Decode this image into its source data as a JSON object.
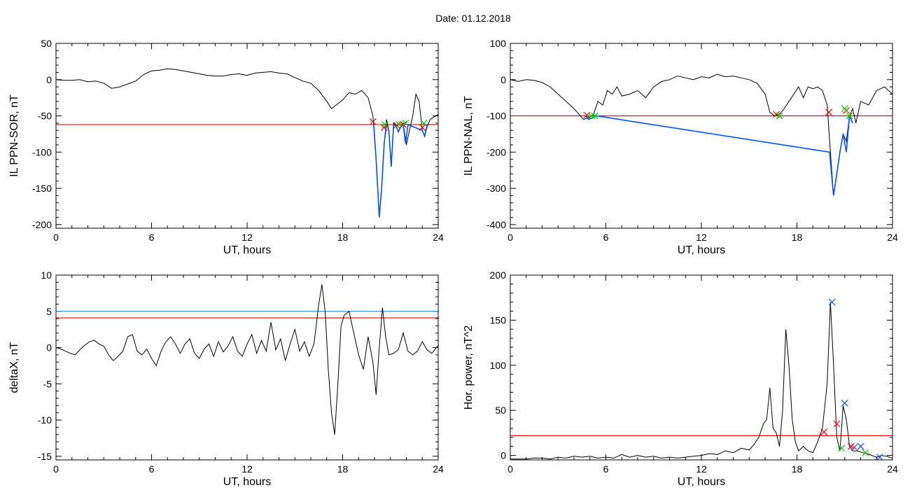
{
  "figure": {
    "title": "Date:  01.12.2018"
  },
  "colors": {
    "axis": "#000000",
    "trace": "#000000",
    "threshold": "#ff0000",
    "blue": "#0050ff",
    "cyan": "#3399cc",
    "green": "#00cc00",
    "marker_red": "#ff0000",
    "marker_blue": "#0050ff",
    "marker_green": "#00cc00",
    "marker_purple": "#993399"
  },
  "chart_data": [
    {
      "type": "line",
      "id": "ppn-sor",
      "xlabel": "UT, hours",
      "ylabel": "IL PPN-SOR, nT",
      "xlim": [
        0,
        24
      ],
      "ylim": [
        -205,
        50
      ],
      "xticks": [
        0,
        6,
        12,
        18,
        24
      ],
      "yticks": [
        50,
        0,
        -50,
        -100,
        -150,
        -200
      ],
      "thresholds": [
        {
          "y": -62,
          "color": "red"
        }
      ],
      "series": [
        {
          "color": "black",
          "x": [
            0,
            0.5,
            1,
            1.5,
            2,
            2.5,
            3,
            3.5,
            4,
            4.5,
            5,
            5.5,
            6,
            6.5,
            7,
            7.5,
            8,
            8.5,
            9,
            9.5,
            10,
            10.5,
            11,
            11.5,
            12,
            12.5,
            13,
            13.5,
            14,
            14.5,
            15,
            15.5,
            16,
            16.5,
            17,
            17.3,
            17.6,
            18,
            18.4,
            18.8,
            19.2,
            19.6,
            19.9,
            20.1,
            20.3,
            20.45,
            20.6,
            20.75,
            20.9,
            21.05,
            21.2,
            21.35,
            21.5,
            21.65,
            21.8,
            22,
            22.2,
            22.4,
            22.6,
            22.8,
            23,
            23.15,
            23.3,
            23.5,
            23.7,
            24
          ],
          "y": [
            0,
            -1,
            -1,
            0,
            -3,
            -2,
            -5,
            -12,
            -10,
            -6,
            -2,
            7,
            12,
            13,
            15,
            14,
            12,
            10,
            8,
            6,
            5,
            5,
            7,
            8,
            6,
            9,
            10,
            11,
            9,
            8,
            3,
            -2,
            -5,
            -15,
            -30,
            -40,
            -35,
            -28,
            -18,
            -20,
            -15,
            -25,
            -50,
            -110,
            -190,
            -150,
            -90,
            -55,
            -70,
            -120,
            -60,
            -64,
            -72,
            -65,
            -60,
            -90,
            -70,
            -50,
            -20,
            -30,
            -70,
            -78,
            -65,
            -55,
            -52,
            -48
          ]
        },
        {
          "color": "blue",
          "x": [
            19.95,
            20.1,
            20.3,
            20.45,
            20.6,
            20.75,
            20.9,
            21.05,
            21.2,
            21.35,
            21.5,
            21.65,
            21.8,
            21.95,
            22.1,
            23,
            23.15,
            23.3
          ],
          "y": [
            -62,
            -110,
            -190,
            -150,
            -90,
            -62,
            -70,
            -120,
            -62,
            -64,
            -72,
            -65,
            -62,
            -88,
            -62,
            -70,
            -78,
            -62
          ]
        }
      ],
      "markers": [
        {
          "x": 19.9,
          "y": -58,
          "color": "red"
        },
        {
          "x": 20.6,
          "y": -66,
          "color": "red"
        },
        {
          "x": 21.4,
          "y": -63,
          "color": "red"
        },
        {
          "x": 21.8,
          "y": -62,
          "color": "red"
        },
        {
          "x": 23.0,
          "y": -66,
          "color": "red"
        },
        {
          "x": 20.65,
          "y": -62,
          "color": "green"
        },
        {
          "x": 21.55,
          "y": -62,
          "color": "green"
        },
        {
          "x": 21.95,
          "y": -60,
          "color": "green"
        },
        {
          "x": 23.1,
          "y": -60,
          "color": "green"
        }
      ]
    },
    {
      "type": "line",
      "id": "ppn-nal",
      "xlabel": "UT, hours",
      "ylabel": "IL PPN-NAL, nT",
      "xlim": [
        0,
        24
      ],
      "ylim": [
        -410,
        100
      ],
      "xticks": [
        0,
        6,
        12,
        18,
        24
      ],
      "yticks": [
        100,
        0,
        -100,
        -200,
        -300,
        -400
      ],
      "thresholds": [
        {
          "y": -100,
          "color": "red"
        }
      ],
      "series": [
        {
          "color": "black",
          "x": [
            0,
            0.5,
            1,
            1.5,
            2,
            2.5,
            3,
            3.5,
            4,
            4.3,
            4.6,
            4.9,
            5.2,
            5.5,
            5.8,
            6.1,
            6.4,
            6.7,
            7,
            7.5,
            8,
            8.5,
            9,
            9.5,
            10,
            10.5,
            11,
            11.5,
            12,
            12.5,
            13,
            13.5,
            14,
            14.5,
            15,
            15.5,
            16,
            16.3,
            16.6,
            16.9,
            17.2,
            17.5,
            17.8,
            18.1,
            18.4,
            18.7,
            19,
            19.3,
            19.6,
            19.9,
            20.1,
            20.3,
            20.5,
            20.7,
            20.9,
            21.1,
            21.3,
            21.5,
            21.7,
            22,
            22.5,
            23,
            23.5,
            24
          ],
          "y": [
            0,
            -5,
            0,
            -2,
            -8,
            -20,
            -40,
            -60,
            -80,
            -95,
            -110,
            -105,
            -100,
            -60,
            -70,
            -30,
            -40,
            -20,
            -45,
            -40,
            -30,
            -50,
            -20,
            -5,
            0,
            10,
            5,
            0,
            8,
            5,
            15,
            8,
            10,
            5,
            0,
            -10,
            -40,
            -90,
            -100,
            -95,
            -80,
            -60,
            -40,
            -20,
            -50,
            -20,
            -25,
            -20,
            -30,
            -70,
            -200,
            -320,
            -260,
            -200,
            -150,
            -170,
            -100,
            -80,
            -120,
            -60,
            -70,
            -30,
            -20,
            -40
          ]
        },
        {
          "color": "blue",
          "x": [
            4.75,
            4.9,
            5.2,
            5.4,
            20.05,
            20.3,
            20.5,
            20.7,
            20.9,
            21.1,
            21.3,
            21.5
          ],
          "y": [
            -100,
            -110,
            -105,
            -100,
            -200,
            -320,
            -260,
            -200,
            -150,
            -200,
            -100,
            -120
          ]
        }
      ],
      "markers": [
        {
          "x": 4.8,
          "y": -98,
          "color": "red"
        },
        {
          "x": 16.7,
          "y": -96,
          "color": "red"
        },
        {
          "x": 20.0,
          "y": -90,
          "color": "red"
        },
        {
          "x": 21.1,
          "y": -85,
          "color": "red"
        },
        {
          "x": 5.1,
          "y": -100,
          "color": "green"
        },
        {
          "x": 5.3,
          "y": -100,
          "color": "green"
        },
        {
          "x": 16.9,
          "y": -100,
          "color": "green"
        },
        {
          "x": 21.0,
          "y": -80,
          "color": "green"
        },
        {
          "x": 21.3,
          "y": -100,
          "color": "green"
        }
      ]
    },
    {
      "type": "line",
      "id": "deltax",
      "xlabel": "UT, hours",
      "ylabel": "deltaX, nT",
      "xlim": [
        0,
        24
      ],
      "ylim": [
        -15.5,
        10
      ],
      "xticks": [
        0,
        6,
        12,
        18,
        24
      ],
      "yticks": [
        10,
        5,
        0,
        -5,
        -10,
        -15
      ],
      "thresholds": [
        {
          "y": 5.0,
          "color": "cyan"
        },
        {
          "y": 4.1,
          "color": "red"
        }
      ],
      "series": [
        {
          "color": "black",
          "x": [
            0,
            0.3,
            0.6,
            0.9,
            1.2,
            1.5,
            1.8,
            2.1,
            2.4,
            2.7,
            3,
            3.3,
            3.6,
            3.9,
            4.2,
            4.5,
            4.8,
            5.1,
            5.4,
            5.7,
            6,
            6.3,
            6.6,
            6.9,
            7.2,
            7.5,
            7.8,
            8.1,
            8.4,
            8.7,
            9,
            9.3,
            9.6,
            9.9,
            10.2,
            10.5,
            10.8,
            11.1,
            11.4,
            11.7,
            12,
            12.3,
            12.6,
            12.9,
            13.2,
            13.5,
            13.8,
            14.1,
            14.4,
            14.7,
            15,
            15.3,
            15.6,
            15.9,
            16.2,
            16.5,
            16.7,
            16.9,
            17.1,
            17.3,
            17.5,
            17.7,
            17.9,
            18.1,
            18.4,
            18.7,
            19,
            19.3,
            19.6,
            19.9,
            20.1,
            20.3,
            20.5,
            20.7,
            20.9,
            21.2,
            21.5,
            21.8,
            22.1,
            22.4,
            22.7,
            23,
            23.3,
            23.6,
            24
          ],
          "y": [
            0,
            -0.2,
            -0.5,
            -0.8,
            -1,
            -0.3,
            0.3,
            0.8,
            1,
            0.5,
            0.2,
            -1,
            -1.8,
            -1.2,
            -0.5,
            1.5,
            1.8,
            -0.5,
            -1,
            -0.2,
            -1.5,
            -2.5,
            -0.5,
            0.8,
            1.5,
            0.5,
            -0.8,
            0.5,
            1.2,
            -0.8,
            -1.5,
            -0.2,
            0.5,
            -1.2,
            0.8,
            -0.6,
            0.2,
            1.5,
            -0.5,
            -1.2,
            0.5,
            1.8,
            -0.8,
            1,
            -0.5,
            3.5,
            -0.3,
            1.2,
            -1.8,
            0.5,
            2.5,
            -0.5,
            0.8,
            -1.2,
            0.5,
            6,
            8.7,
            5,
            -3,
            -9,
            -12,
            -5,
            3,
            4.5,
            5,
            2,
            -1,
            -3,
            1.5,
            -2,
            -6.5,
            0,
            5.5,
            1.5,
            -1,
            -0.8,
            -0.3,
            2,
            -0.5,
            -1,
            -0.5,
            0.8,
            -0.3,
            -0.8,
            0.3
          ]
        }
      ],
      "markers": []
    },
    {
      "type": "line",
      "id": "hor-power",
      "xlabel": "UT, hours",
      "ylabel": "Hor. power, nT^2",
      "xlim": [
        0,
        24
      ],
      "ylim": [
        -5,
        200
      ],
      "xticks": [
        0,
        6,
        12,
        18,
        24
      ],
      "yticks": [
        200,
        150,
        100,
        50,
        0
      ],
      "thresholds": [
        {
          "y": 22,
          "color": "red"
        }
      ],
      "series": [
        {
          "color": "black",
          "x": [
            0,
            0.5,
            1,
            1.5,
            2,
            2.5,
            3,
            3.5,
            4,
            4.5,
            5,
            5.5,
            6,
            6.5,
            7,
            7.5,
            8,
            8.5,
            9,
            9.5,
            10,
            10.5,
            11,
            11.5,
            12,
            12.5,
            13,
            13.5,
            14,
            14.5,
            15,
            15.3,
            15.6,
            15.9,
            16.1,
            16.3,
            16.5,
            16.7,
            16.9,
            17.1,
            17.3,
            17.5,
            17.7,
            17.9,
            18.1,
            18.4,
            18.7,
            19,
            19.3,
            19.6,
            19.9,
            20.1,
            20.3,
            20.5,
            20.7,
            20.9,
            21.1,
            21.3,
            21.5,
            21.8,
            22.1,
            22.4,
            22.7,
            23,
            23.3,
            23.6,
            24
          ],
          "y": [
            -4,
            -4,
            -4,
            -3,
            -3,
            -4,
            -2,
            -3,
            -1,
            -2,
            -1,
            -3,
            -2,
            -3,
            1,
            -2,
            0,
            -2,
            -1,
            -3,
            -2,
            -3,
            -2,
            -1,
            0,
            2,
            1,
            5,
            3,
            8,
            6,
            12,
            20,
            35,
            40,
            75,
            30,
            25,
            10,
            50,
            140,
            100,
            40,
            15,
            5,
            10,
            5,
            3,
            15,
            30,
            80,
            170,
            100,
            20,
            5,
            55,
            40,
            10,
            5,
            5,
            3,
            2,
            0,
            -2,
            0,
            -1,
            -3
          ]
        }
      ],
      "markers": [
        {
          "x": 19.7,
          "y": 26,
          "color": "red"
        },
        {
          "x": 20.5,
          "y": 35,
          "color": "red"
        },
        {
          "x": 21.4,
          "y": 10,
          "color": "red"
        },
        {
          "x": 20.2,
          "y": 170,
          "color": "blue"
        },
        {
          "x": 21.0,
          "y": 58,
          "color": "blue"
        },
        {
          "x": 22.0,
          "y": 10,
          "color": "blue"
        },
        {
          "x": 23.2,
          "y": -2,
          "color": "blue"
        },
        {
          "x": 21.6,
          "y": 9,
          "color": "purple"
        },
        {
          "x": 20.8,
          "y": 8,
          "color": "green"
        },
        {
          "x": 22.3,
          "y": 3,
          "color": "green"
        }
      ]
    }
  ]
}
